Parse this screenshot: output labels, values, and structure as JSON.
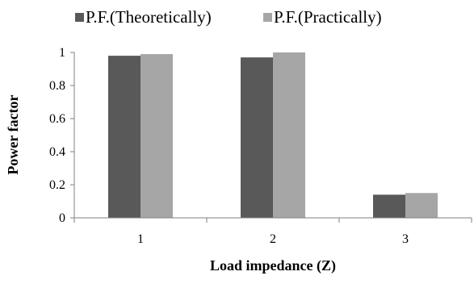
{
  "chart_data": {
    "type": "bar",
    "title": "",
    "xlabel": "Load impedance (Z)",
    "ylabel": "Power factor",
    "categories": [
      "1",
      "2",
      "3"
    ],
    "series": [
      {
        "name": "P.F.(Theoretically)",
        "values": [
          0.98,
          0.97,
          0.14
        ],
        "color": "#595959"
      },
      {
        "name": "P.F.(Practically)",
        "values": [
          0.99,
          1.0,
          0.15
        ],
        "color": "#a6a6a6"
      }
    ],
    "ylim": [
      0,
      1
    ],
    "yticks": [
      "0",
      "0.2",
      "0.4",
      "0.6",
      "0.8",
      "1"
    ],
    "grid": false,
    "legend_position": "top"
  }
}
